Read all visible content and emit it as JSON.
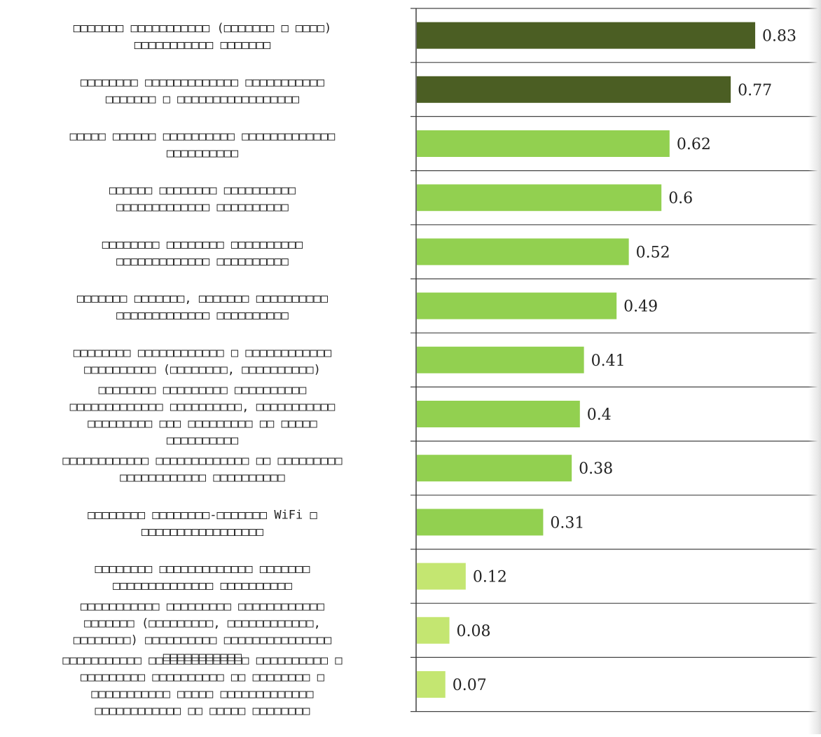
{
  "chart_data": {
    "type": "bar",
    "orientation": "horizontal",
    "categories": [
      "□□□□□□□ □□□□□□□□□□□ (□□□□□□□ □ □□□□) □□□□□□□□□□□ □□□□□□□",
      "□□□□□□□□ □□□□□□□□□□□□□ □□□□□□□□□□□ □□□□□□□ □ □□□□□□□□□□□□□□□□□",
      "□□□□□ □□□□□□ □□□□□□□□□□ □□□□□□□□□□□□□ □□□□□□□□□□",
      "□□□□□□ □□□□□□□□ □□□□□□□□□□ □□□□□□□□□□□□□ □□□□□□□□□□",
      "□□□□□□□□ □□□□□□□□ □□□□□□□□□□ □□□□□□□□□□□□□ □□□□□□□□□□",
      "□□□□□□□ □□□□□□□, □□□□□□□ □□□□□□□□□□ □□□□□□□□□□□□□ □□□□□□□□□□",
      "□□□□□□□□  □□□□□□□□□□□□ □ □□□□□□□□□□□□ □□□□□□□□□□ (□□□□□□□□, □□□□□□□□□□)",
      "□□□□□□□□ □□□□□□□□□ □□□□□□□□□□ □□□□□□□□□□□□□ □□□□□□□□□□, □□□□□□□□□□□ □□□□□□□□□ □□□ □□□□□□□□□ □□ □□□□□ □□□□□□□□□□",
      "□□□□□□□□□□□□ □□□□□□□□□□□□□ □□ □□□□□□□□□ □□□□□□□□□□□□ □□□□□□□□□□",
      "□□□□□□□□ □□□□□□□□-□□□□□□□ WiFi □ □□□□□□□□□□□□□□□□□",
      "□□□□□□□□ □□□□□□□□□□□□□ □□□□□□□ □□□□□□□□□□□□□□ □□□□□□□□□□",
      "□□□□□□□□□□□ □□□□□□□□□ □□□□□□□□□□□□ □□□□□□□ (□□□□□□□□□, □□□□□□□□□□□□, □□□□□□□□) □□□□□□□□□□ □□□□□□□□□□□□□□□",
      "□□□□□□□□□□□ □□□□□□□□□□□□□□ □□□□□□□□□□ □ □□□□□□□□□ □□□□□□□□□□ □□ □□□□□□□□ □ □□□□□□□□□□□ □□□□□ □□□□□□□□□□□□□ □□□□□□□□□□□□ □□ □□□□□ □□□□□□□□"
    ],
    "values": [
      0.83,
      0.77,
      0.62,
      0.6,
      0.52,
      0.49,
      0.41,
      0.4,
      0.38,
      0.31,
      0.12,
      0.08,
      0.07
    ],
    "label_lines": [
      [
        "□□□□□□□ □□□□□□□□□□□ (□□□□□□□ □ □□□□)",
        "□□□□□□□□□□□ □□□□□□□"
      ],
      [
        "□□□□□□□□ □□□□□□□□□□□□□ □□□□□□□□□□□",
        "□□□□□□□ □ □□□□□□□□□□□□□□□□□"
      ],
      [
        "□□□□□ □□□□□□ □□□□□□□□□□ □□□□□□□□□□□□□",
        "□□□□□□□□□□"
      ],
      [
        "□□□□□□ □□□□□□□□ □□□□□□□□□□",
        "□□□□□□□□□□□□□ □□□□□□□□□□"
      ],
      [
        "□□□□□□□□ □□□□□□□□ □□□□□□□□□□",
        "□□□□□□□□□□□□□ □□□□□□□□□□"
      ],
      [
        "□□□□□□□ □□□□□□□, □□□□□□□ □□□□□□□□□□",
        "□□□□□□□□□□□□□ □□□□□□□□□□"
      ],
      [
        "□□□□□□□□  □□□□□□□□□□□□ □ □□□□□□□□□□□□",
        "□□□□□□□□□□ (□□□□□□□□, □□□□□□□□□□)"
      ],
      [
        "□□□□□□□□ □□□□□□□□□ □□□□□□□□□□",
        "□□□□□□□□□□□□□ □□□□□□□□□□, □□□□□□□□□□□",
        "□□□□□□□□□ □□□ □□□□□□□□□ □□ □□□□□",
        "□□□□□□□□□□"
      ],
      [
        "□□□□□□□□□□□□ □□□□□□□□□□□□□ □□ □□□□□□□□□",
        "□□□□□□□□□□□□ □□□□□□□□□□"
      ],
      [
        "□□□□□□□□ □□□□□□□□-□□□□□□□ WiFi □",
        "□□□□□□□□□□□□□□□□□"
      ],
      [
        "□□□□□□□□ □□□□□□□□□□□□□ □□□□□□□",
        "□□□□□□□□□□□□□□ □□□□□□□□□□"
      ],
      [
        "□□□□□□□□□□□ □□□□□□□□□ □□□□□□□□□□□□",
        "□□□□□□□ (□□□□□□□□□, □□□□□□□□□□□□,",
        "□□□□□□□□) □□□□□□□□□□ □□□□□□□□□□□□□□□",
        "□□□□□□□□□□□"
      ],
      [
        "□□□□□□□□□□□ □□□□□□□□□□□□□□ □□□□□□□□□□ □",
        "□□□□□□□□□ □□□□□□□□□□ □□ □□□□□□□□ □",
        "□□□□□□□□□□□ □□□□□ □□□□□□□□□□□□□",
        "□□□□□□□□□□□□ □□ □□□□□ □□□□□□□□"
      ]
    ],
    "bar_colors": [
      "#4b5e23",
      "#4b5e23",
      "#92d050",
      "#92d050",
      "#92d050",
      "#92d050",
      "#92d050",
      "#92d050",
      "#92d050",
      "#92d050",
      "#c4e671",
      "#c4e671",
      "#c4e671"
    ],
    "xlim": [
      0,
      1
    ],
    "title": "",
    "xlabel": "",
    "ylabel": "",
    "grid": "horizontal separator lines between categories",
    "legend": "none"
  }
}
